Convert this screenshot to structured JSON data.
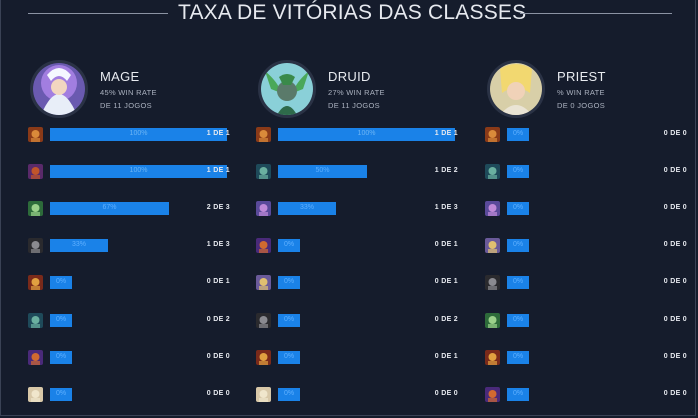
{
  "page": {
    "title": "TAXA DE VITÓRIAS DAS CLASSES"
  },
  "classes": [
    {
      "name": "MAGE",
      "win_rate": "45% WIN RATE",
      "games": "DE 11 JOGOS",
      "portrait_icon": "mage-portrait",
      "matchups": [
        {
          "opponent_icon": "warrior-icon",
          "pct": "100%",
          "value": 1.0,
          "record": "1 DE 1"
        },
        {
          "opponent_icon": "warlock-icon",
          "pct": "100%",
          "value": 1.0,
          "record": "1 DE 1"
        },
        {
          "opponent_icon": "hunter-icon",
          "pct": "67%",
          "value": 0.67,
          "record": "2 DE 3"
        },
        {
          "opponent_icon": "rogue-icon",
          "pct": "33%",
          "value": 0.33,
          "record": "1 DE 3"
        },
        {
          "opponent_icon": "shaman-icon",
          "pct": "0%",
          "value": 0,
          "record": "0 DE 1"
        },
        {
          "opponent_icon": "druid-icon",
          "pct": "0%",
          "value": 0,
          "record": "0 DE 2"
        },
        {
          "opponent_icon": "demon-hunter-icon",
          "pct": "0%",
          "value": 0,
          "record": "0 DE 0"
        },
        {
          "opponent_icon": "priest-icon",
          "pct": "0%",
          "value": 0,
          "record": "0 DE 0"
        }
      ]
    },
    {
      "name": "DRUID",
      "win_rate": "27% WIN RATE",
      "games": "DE 11 JOGOS",
      "portrait_icon": "druid-portrait",
      "matchups": [
        {
          "opponent_icon": "warrior-icon",
          "pct": "100%",
          "value": 1.0,
          "record": "1 DE 1"
        },
        {
          "opponent_icon": "druid-icon",
          "pct": "50%",
          "value": 0.5,
          "record": "1 DE 2"
        },
        {
          "opponent_icon": "mage-icon",
          "pct": "33%",
          "value": 0.33,
          "record": "1 DE 3"
        },
        {
          "opponent_icon": "demon-hunter-icon",
          "pct": "0%",
          "value": 0,
          "record": "0 DE 1"
        },
        {
          "opponent_icon": "paladin-icon",
          "pct": "0%",
          "value": 0,
          "record": "0 DE 1"
        },
        {
          "opponent_icon": "rogue-icon",
          "pct": "0%",
          "value": 0,
          "record": "0 DE 2"
        },
        {
          "opponent_icon": "shaman-icon",
          "pct": "0%",
          "value": 0,
          "record": "0 DE 1"
        },
        {
          "opponent_icon": "priest-icon",
          "pct": "0%",
          "value": 0,
          "record": "0 DE 0"
        }
      ]
    },
    {
      "name": "PRIEST",
      "win_rate": "% WIN RATE",
      "games": "DE 0 JOGOS",
      "portrait_icon": "priest-portrait",
      "matchups": [
        {
          "opponent_icon": "warrior-icon",
          "pct": "0%",
          "value": 0,
          "record": "0 DE 0"
        },
        {
          "opponent_icon": "druid-icon",
          "pct": "0%",
          "value": 0,
          "record": "0 DE 0"
        },
        {
          "opponent_icon": "mage-icon",
          "pct": "0%",
          "value": 0,
          "record": "0 DE 0"
        },
        {
          "opponent_icon": "paladin-icon",
          "pct": "0%",
          "value": 0,
          "record": "0 DE 0"
        },
        {
          "opponent_icon": "rogue-icon",
          "pct": "0%",
          "value": 0,
          "record": "0 DE 0"
        },
        {
          "opponent_icon": "hunter-icon",
          "pct": "0%",
          "value": 0,
          "record": "0 DE 0"
        },
        {
          "opponent_icon": "shaman-icon",
          "pct": "0%",
          "value": 0,
          "record": "0 DE 0"
        },
        {
          "opponent_icon": "demon-hunter-icon",
          "pct": "0%",
          "value": 0,
          "record": "0 DE 0"
        }
      ]
    }
  ],
  "colors": {
    "background": "#151c2c",
    "bar": "#1a82e8",
    "pct_text": "#5fb0ff"
  }
}
